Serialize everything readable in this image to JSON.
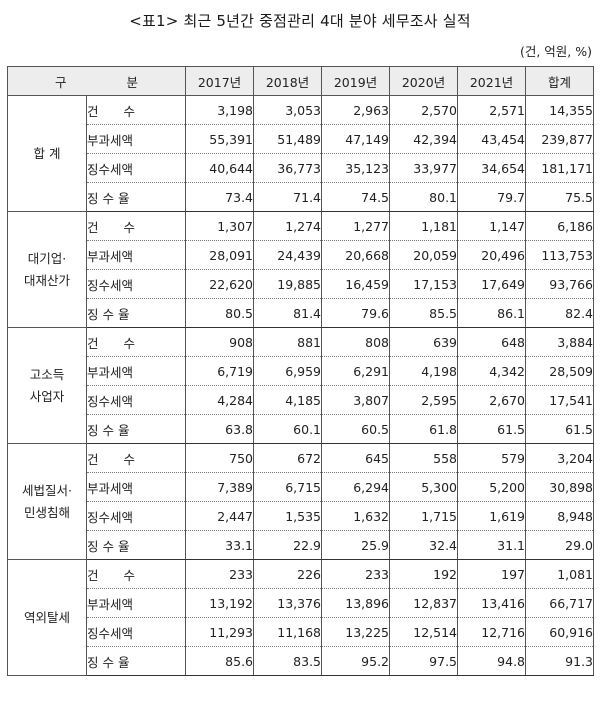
{
  "title": "<표1> 최근 5년간 중점관리 4대 분야 세무조사 실적",
  "unit": "(건, 억원, %)",
  "table": {
    "header": {
      "gubun": "구 분",
      "years": [
        "2017년",
        "2018년",
        "2019년",
        "2020년",
        "2021년"
      ],
      "total": "합계"
    },
    "row_labels": [
      "건 수",
      "부과세액",
      "징수세액",
      "징 수 율"
    ],
    "groups": [
      {
        "name": "합 계",
        "rows": [
          {
            "label": "건　　수",
            "values": [
              "3,198",
              "3,053",
              "2,963",
              "2,570",
              "2,571",
              "14,355"
            ]
          },
          {
            "label": "부과세액",
            "values": [
              "55,391",
              "51,489",
              "47,149",
              "42,394",
              "43,454",
              "239,877"
            ]
          },
          {
            "label": "징수세액",
            "values": [
              "40,644",
              "36,773",
              "35,123",
              "33,977",
              "34,654",
              "181,171"
            ]
          },
          {
            "label": "징 수 율",
            "values": [
              "73.4",
              "71.4",
              "74.5",
              "80.1",
              "79.7",
              "75.5"
            ]
          }
        ]
      },
      {
        "name": "대기업·\n대재산가",
        "rows": [
          {
            "label": "건　　수",
            "values": [
              "1,307",
              "1,274",
              "1,277",
              "1,181",
              "1,147",
              "6,186"
            ]
          },
          {
            "label": "부과세액",
            "values": [
              "28,091",
              "24,439",
              "20,668",
              "20,059",
              "20,496",
              "113,753"
            ]
          },
          {
            "label": "징수세액",
            "values": [
              "22,620",
              "19,885",
              "16,459",
              "17,153",
              "17,649",
              "93,766"
            ]
          },
          {
            "label": "징 수 율",
            "values": [
              "80.5",
              "81.4",
              "79.6",
              "85.5",
              "86.1",
              "82.4"
            ]
          }
        ]
      },
      {
        "name": "고소득\n사업자",
        "rows": [
          {
            "label": "건　　수",
            "values": [
              "908",
              "881",
              "808",
              "639",
              "648",
              "3,884"
            ]
          },
          {
            "label": "부과세액",
            "values": [
              "6,719",
              "6,959",
              "6,291",
              "4,198",
              "4,342",
              "28,509"
            ]
          },
          {
            "label": "징수세액",
            "values": [
              "4,284",
              "4,185",
              "3,807",
              "2,595",
              "2,670",
              "17,541"
            ]
          },
          {
            "label": "징 수 율",
            "values": [
              "63.8",
              "60.1",
              "60.5",
              "61.8",
              "61.5",
              "61.5"
            ]
          }
        ]
      },
      {
        "name": "세법질서·\n민생침해",
        "rows": [
          {
            "label": "건　　수",
            "values": [
              "750",
              "672",
              "645",
              "558",
              "579",
              "3,204"
            ]
          },
          {
            "label": "부과세액",
            "values": [
              "7,389",
              "6,715",
              "6,294",
              "5,300",
              "5,200",
              "30,898"
            ]
          },
          {
            "label": "징수세액",
            "values": [
              "2,447",
              "1,535",
              "1,632",
              "1,715",
              "1,619",
              "8,948"
            ]
          },
          {
            "label": "징 수 율",
            "values": [
              "33.1",
              "22.9",
              "25.9",
              "32.4",
              "31.1",
              "29.0"
            ]
          }
        ]
      },
      {
        "name": "역외탈세",
        "rows": [
          {
            "label": "건　　수",
            "values": [
              "233",
              "226",
              "233",
              "192",
              "197",
              "1,081"
            ]
          },
          {
            "label": "부과세액",
            "values": [
              "13,192",
              "13,376",
              "13,896",
              "12,837",
              "13,416",
              "66,717"
            ]
          },
          {
            "label": "징수세액",
            "values": [
              "11,293",
              "11,168",
              "13,225",
              "12,514",
              "12,716",
              "60,916"
            ]
          },
          {
            "label": "징 수 율",
            "values": [
              "85.6",
              "83.5",
              "95.2",
              "97.5",
              "94.8",
              "91.3"
            ]
          }
        ]
      }
    ]
  }
}
